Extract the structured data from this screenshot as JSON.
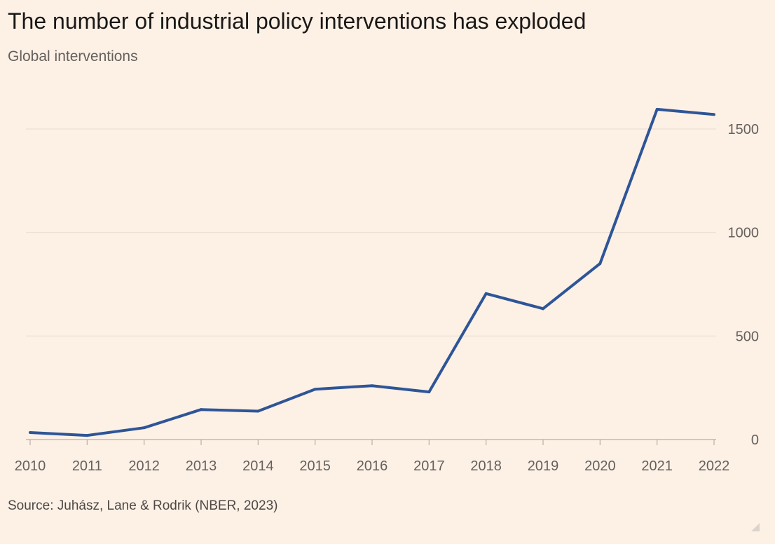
{
  "header": {
    "title": "The number of industrial policy interventions has exploded",
    "subtitle": "Global interventions"
  },
  "footer": {
    "source": "Source: Juhász, Lane & Rodrik (NBER, 2023)"
  },
  "colors": {
    "line": "#2e5597",
    "grid": "#e9dfd5",
    "axis": "#b8aea6",
    "background": "#fdf1e6"
  },
  "chart_data": {
    "type": "line",
    "title": "The number of industrial policy interventions has exploded",
    "subtitle": "Global interventions",
    "xlabel": "",
    "ylabel": "",
    "x": [
      "2010",
      "2011",
      "2012",
      "2013",
      "2014",
      "2015",
      "2016",
      "2017",
      "2018",
      "2019",
      "2020",
      "2021",
      "2022"
    ],
    "series": [
      {
        "values": [
          34,
          20,
          57,
          145,
          137,
          243,
          260,
          230,
          705,
          632,
          850,
          1595,
          1570
        ]
      }
    ],
    "ylim": [
      0,
      1650
    ],
    "yticks": [
      0,
      500,
      1000,
      1500
    ],
    "ytick_labels": [
      "0",
      "500",
      "1000",
      "1500"
    ],
    "y_axis_position": "right",
    "grid": true,
    "legend": "none",
    "source": "Source: Juhász, Lane & Rodrik (NBER, 2023)"
  }
}
